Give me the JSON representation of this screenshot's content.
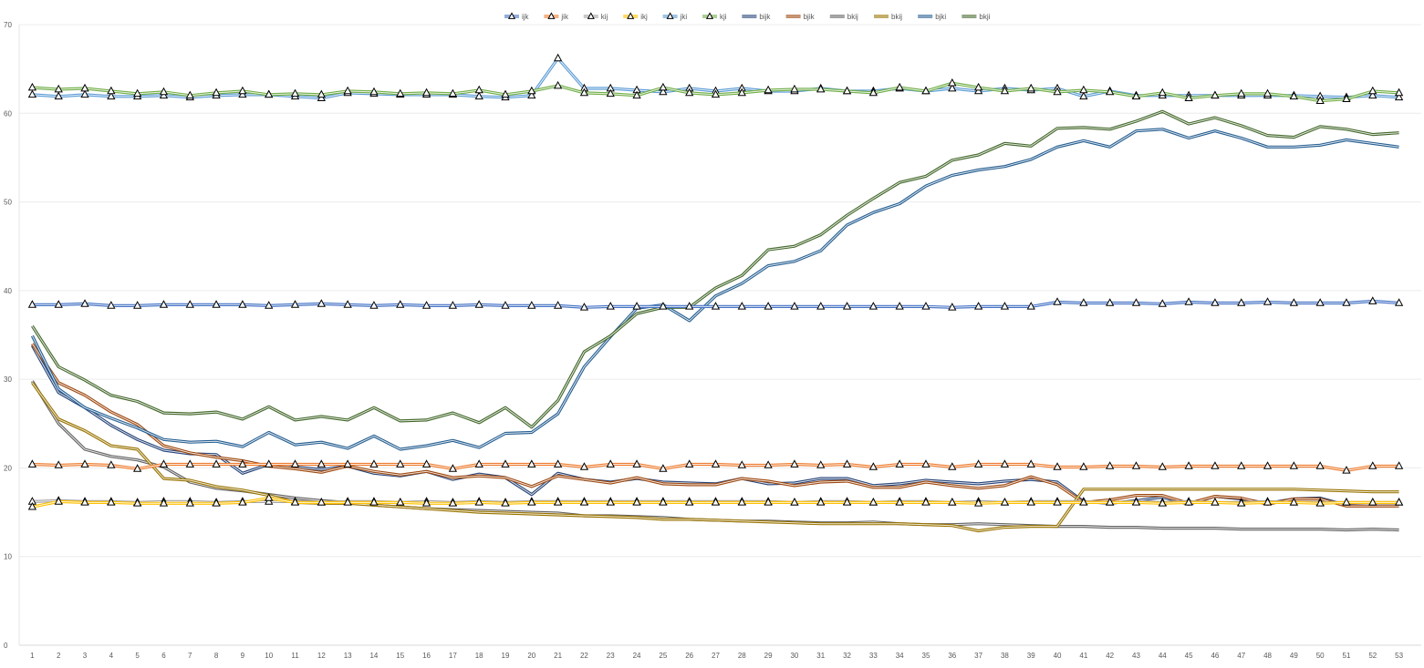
{
  "chart_data": {
    "type": "line",
    "title": "",
    "xlabel": "",
    "ylabel": "",
    "ylim": [
      0,
      70
    ],
    "yticks": [
      0,
      10,
      20,
      30,
      40,
      50,
      60,
      70
    ],
    "grid": true,
    "legend_position": "top",
    "x": [
      1,
      2,
      3,
      4,
      5,
      6,
      7,
      8,
      9,
      10,
      11,
      12,
      13,
      14,
      15,
      16,
      17,
      18,
      19,
      20,
      21,
      22,
      23,
      24,
      25,
      26,
      27,
      28,
      29,
      30,
      31,
      32,
      33,
      34,
      35,
      36,
      37,
      38,
      39,
      40,
      41,
      42,
      43,
      44,
      45,
      46,
      47,
      48,
      49,
      50,
      51,
      52,
      53
    ],
    "series": [
      {
        "name": "ijk",
        "color": "#4472c4",
        "marker": "triangle",
        "values": [
          38.4,
          38.4,
          38.5,
          38.3,
          38.3,
          38.4,
          38.4,
          38.4,
          38.4,
          38.3,
          38.4,
          38.5,
          38.4,
          38.3,
          38.4,
          38.3,
          38.3,
          38.4,
          38.3,
          38.3,
          38.3,
          38.1,
          38.2,
          38.2,
          38.2,
          38.2,
          38.2,
          38.2,
          38.2,
          38.2,
          38.2,
          38.2,
          38.2,
          38.2,
          38.2,
          38.1,
          38.2,
          38.2,
          38.2,
          38.7,
          38.6,
          38.6,
          38.6,
          38.5,
          38.7,
          38.6,
          38.6,
          38.7,
          38.6,
          38.6,
          38.6,
          38.8,
          38.6
        ]
      },
      {
        "name": "jik",
        "color": "#ed7d31",
        "marker": "triangle",
        "values": [
          20.4,
          20.3,
          20.4,
          20.3,
          19.9,
          20.4,
          20.4,
          20.4,
          20.4,
          20.4,
          20.4,
          20.4,
          20.4,
          20.4,
          20.4,
          20.4,
          19.9,
          20.4,
          20.4,
          20.4,
          20.4,
          20.1,
          20.4,
          20.4,
          19.9,
          20.4,
          20.4,
          20.3,
          20.3,
          20.4,
          20.3,
          20.4,
          20.1,
          20.4,
          20.4,
          20.1,
          20.4,
          20.4,
          20.4,
          20.1,
          20.1,
          20.2,
          20.2,
          20.1,
          20.2,
          20.2,
          20.2,
          20.2,
          20.2,
          20.2,
          19.7,
          20.2,
          20.2
        ]
      },
      {
        "name": "kij",
        "color": "#a5a5a5",
        "marker": "triangle",
        "values": [
          16.2,
          16.3,
          16.2,
          16.2,
          16.1,
          16.2,
          16.2,
          16.1,
          16.2,
          16.2,
          16.2,
          16.1,
          16.2,
          16.2,
          16.1,
          16.2,
          16.1,
          16.2,
          16.1,
          16.2,
          16.2,
          16.2,
          16.2,
          16.2,
          16.2,
          16.2,
          16.2,
          16.2,
          16.2,
          16.1,
          16.2,
          16.2,
          16.1,
          16.2,
          16.2,
          16.1,
          16.2,
          16.1,
          16.2,
          16.2,
          16.2,
          16.1,
          16.2,
          16.1,
          16.2,
          16.1,
          16.1,
          16.2,
          16.1,
          16.1,
          16.1,
          16.1,
          16.1
        ]
      },
      {
        "name": "ikj",
        "color": "#ffc000",
        "marker": "triangle",
        "values": [
          15.6,
          16.2,
          16.1,
          16.1,
          16.0,
          16.0,
          16.0,
          16.0,
          16.1,
          16.6,
          16.1,
          16.1,
          16.1,
          16.1,
          16.1,
          16.0,
          16.0,
          16.1,
          16.0,
          16.1,
          16.1,
          16.1,
          16.1,
          16.1,
          16.1,
          16.1,
          16.1,
          16.1,
          16.1,
          16.1,
          16.1,
          16.1,
          16.1,
          16.1,
          16.1,
          16.1,
          16.0,
          16.1,
          16.1,
          16.1,
          16.1,
          16.1,
          16.1,
          16.0,
          16.1,
          16.1,
          16.0,
          16.1,
          16.1,
          16.0,
          16.1,
          16.1,
          16.1
        ]
      },
      {
        "name": "jki",
        "color": "#5b9bd5",
        "marker": "triangle",
        "values": [
          62.1,
          61.9,
          62.1,
          61.9,
          61.9,
          62.0,
          61.8,
          62.0,
          62.1,
          62.1,
          61.9,
          61.7,
          62.3,
          62.2,
          62.1,
          62.1,
          62.1,
          61.9,
          61.8,
          62.0,
          66.2,
          62.8,
          62.8,
          62.6,
          62.4,
          62.8,
          62.5,
          62.8,
          62.5,
          62.5,
          62.8,
          62.5,
          62.5,
          62.8,
          62.5,
          62.8,
          62.5,
          62.8,
          62.6,
          62.8,
          61.9,
          62.5,
          62.0,
          62.0,
          62.0,
          62.0,
          62.0,
          62.0,
          62.0,
          61.9,
          61.8,
          62.0,
          61.8
        ]
      },
      {
        "name": "kji",
        "color": "#70ad47",
        "marker": "triangle",
        "values": [
          62.9,
          62.7,
          62.8,
          62.5,
          62.2,
          62.4,
          62.0,
          62.3,
          62.5,
          62.1,
          62.2,
          62.1,
          62.5,
          62.4,
          62.2,
          62.3,
          62.2,
          62.6,
          62.1,
          62.5,
          63.1,
          62.3,
          62.2,
          62.0,
          62.9,
          62.3,
          62.1,
          62.3,
          62.6,
          62.7,
          62.7,
          62.5,
          62.3,
          62.9,
          62.5,
          63.4,
          62.9,
          62.5,
          62.8,
          62.4,
          62.6,
          62.4,
          61.9,
          62.3,
          61.7,
          62.0,
          62.2,
          62.2,
          61.9,
          61.4,
          61.6,
          62.5,
          62.3
        ]
      },
      {
        "name": "bijk",
        "color": "#264478",
        "marker": "none",
        "values": [
          33.8,
          28.5,
          26.8,
          24.8,
          23.2,
          22.0,
          21.6,
          21.5,
          19.4,
          20.4,
          20.1,
          19.8,
          20.2,
          19.4,
          19.1,
          19.6,
          18.7,
          19.3,
          18.9,
          17.0,
          19.4,
          18.7,
          18.4,
          18.8,
          18.4,
          18.3,
          18.2,
          18.8,
          18.2,
          18.3,
          18.8,
          18.8,
          18.0,
          18.2,
          18.6,
          18.4,
          18.2,
          18.5,
          18.7,
          18.4,
          16.2,
          16.0,
          16.3,
          16.7,
          15.9,
          16.8,
          16.5,
          16.0,
          16.5,
          16.6,
          15.8,
          15.9,
          15.9
        ]
      },
      {
        "name": "bjik",
        "color": "#9e480e",
        "marker": "none",
        "values": [
          34.0,
          29.6,
          28.2,
          26.3,
          24.9,
          22.5,
          21.7,
          21.2,
          20.8,
          20.2,
          19.9,
          19.5,
          20.2,
          19.6,
          19.2,
          19.6,
          18.9,
          19.1,
          18.9,
          17.9,
          19.1,
          18.7,
          18.3,
          18.9,
          18.2,
          18.1,
          18.1,
          18.8,
          18.5,
          18.0,
          18.4,
          18.5,
          17.8,
          17.8,
          18.4,
          18.0,
          17.7,
          18.0,
          19.0,
          18.1,
          16.1,
          16.4,
          16.9,
          16.9,
          16.0,
          16.8,
          16.6,
          15.9,
          16.5,
          16.5,
          15.7,
          15.7,
          15.7
        ]
      },
      {
        "name": "bkij",
        "color": "#636363",
        "marker": "none",
        "values": [
          29.8,
          25.0,
          22.1,
          21.3,
          20.9,
          20.1,
          18.4,
          17.7,
          17.4,
          17.0,
          16.6,
          16.3,
          16.1,
          15.8,
          15.6,
          15.4,
          15.3,
          15.2,
          15.1,
          15.0,
          14.9,
          14.6,
          14.6,
          14.5,
          14.4,
          14.2,
          14.1,
          14.0,
          14.0,
          13.9,
          13.8,
          13.8,
          13.9,
          13.7,
          13.6,
          13.6,
          13.7,
          13.6,
          13.5,
          13.4,
          13.4,
          13.3,
          13.3,
          13.2,
          13.2,
          13.2,
          13.1,
          13.1,
          13.1,
          13.1,
          13.0,
          13.1,
          13.0
        ]
      },
      {
        "name": "bkij",
        "color": "#997300",
        "marker": "none",
        "values": [
          29.6,
          25.5,
          24.2,
          22.5,
          22.1,
          18.8,
          18.6,
          17.9,
          17.5,
          16.9,
          16.1,
          16.0,
          16.0,
          15.8,
          15.6,
          15.4,
          15.2,
          15.0,
          14.9,
          14.8,
          14.7,
          14.6,
          14.5,
          14.4,
          14.2,
          14.2,
          14.1,
          14.0,
          13.9,
          13.8,
          13.7,
          13.7,
          13.7,
          13.7,
          13.6,
          13.5,
          12.9,
          13.3,
          13.4,
          13.4,
          17.6,
          17.6,
          17.6,
          17.6,
          17.6,
          17.6,
          17.6,
          17.6,
          17.6,
          17.5,
          17.4,
          17.3,
          17.3
        ]
      },
      {
        "name": "bjki",
        "color": "#255e91",
        "marker": "none",
        "values": [
          34.9,
          28.9,
          26.8,
          25.6,
          24.5,
          23.2,
          22.9,
          23.0,
          22.4,
          24.0,
          22.6,
          22.9,
          22.2,
          23.6,
          22.1,
          22.5,
          23.1,
          22.3,
          23.9,
          24.0,
          26.1,
          31.4,
          34.8,
          38.0,
          38.4,
          36.6,
          39.4,
          40.8,
          42.8,
          43.3,
          44.5,
          47.4,
          48.8,
          49.8,
          51.8,
          53.0,
          53.6,
          54.0,
          54.8,
          56.2,
          56.9,
          56.2,
          58.0,
          58.2,
          57.2,
          58.0,
          57.2,
          56.2,
          56.2,
          56.4,
          57.0,
          56.6,
          56.2
        ]
      },
      {
        "name": "bkji",
        "color": "#43682b",
        "marker": "none",
        "values": [
          36.0,
          31.4,
          29.9,
          28.2,
          27.5,
          26.2,
          26.1,
          26.3,
          25.5,
          26.9,
          25.4,
          25.8,
          25.4,
          26.8,
          25.3,
          25.4,
          26.2,
          25.1,
          26.8,
          24.6,
          27.6,
          33.1,
          34.9,
          37.4,
          38.1,
          38.1,
          40.3,
          41.7,
          44.6,
          45.0,
          46.3,
          48.5,
          50.4,
          52.2,
          52.9,
          54.7,
          55.3,
          56.6,
          56.3,
          58.3,
          58.4,
          58.2,
          59.1,
          60.2,
          58.8,
          59.5,
          58.6,
          57.5,
          57.3,
          58.5,
          58.2,
          57.6,
          57.8
        ]
      }
    ]
  }
}
